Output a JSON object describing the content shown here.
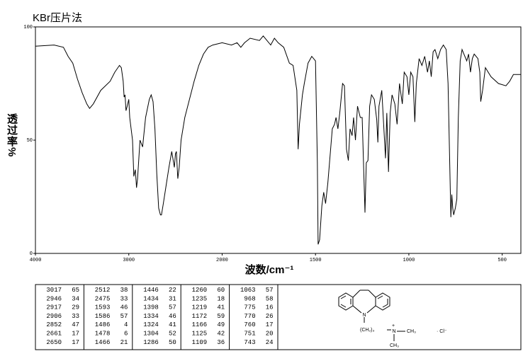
{
  "chart_data": {
    "type": "line",
    "title": "KBr压片法",
    "x_label": "波数/cm⁻¹",
    "y_label": "透过率%",
    "xlim": [
      4000,
      400
    ],
    "scale_change_at": 2000,
    "xticks": [
      4000,
      3000,
      2000,
      1500,
      1000,
      500
    ],
    "ylim": [
      0,
      100
    ],
    "yticks": [
      0,
      50,
      100
    ],
    "color": "#000000",
    "x": [
      4000,
      3800,
      3700,
      3650,
      3600,
      3550,
      3500,
      3450,
      3420,
      3380,
      3300,
      3200,
      3150,
      3100,
      3080,
      3060,
      3050,
      3040,
      3030,
      3017,
      3000,
      2990,
      2960,
      2946,
      2930,
      2917,
      2906,
      2880,
      2852,
      2820,
      2780,
      2760,
      2740,
      2720,
      2700,
      2680,
      2661,
      2650,
      2630,
      2600,
      2570,
      2540,
      2512,
      2500,
      2490,
      2475,
      2460,
      2440,
      2400,
      2350,
      2300,
      2250,
      2200,
      2150,
      2100,
      2050,
      2000,
      1950,
      1920,
      1900,
      1880,
      1850,
      1800,
      1780,
      1760,
      1740,
      1720,
      1700,
      1670,
      1640,
      1620,
      1600,
      1593,
      1586,
      1570,
      1560,
      1540,
      1520,
      1500,
      1490,
      1486,
      1478,
      1466,
      1456,
      1446,
      1434,
      1420,
      1410,
      1398,
      1390,
      1380,
      1370,
      1355,
      1345,
      1334,
      1324,
      1315,
      1304,
      1296,
      1286,
      1275,
      1260,
      1250,
      1235,
      1228,
      1219,
      1210,
      1200,
      1185,
      1172,
      1166,
      1160,
      1145,
      1125,
      1118,
      1109,
      1100,
      1090,
      1075,
      1063,
      1050,
      1035,
      1025,
      1010,
      1000,
      990,
      978,
      968,
      960,
      945,
      930,
      915,
      900,
      890,
      880,
      870,
      860,
      845,
      830,
      815,
      800,
      790,
      775,
      770,
      765,
      760,
      751,
      743,
      735,
      725,
      715,
      705,
      690,
      680,
      670,
      660,
      650,
      630,
      620,
      615,
      605,
      590,
      560,
      520,
      480,
      460,
      440,
      420,
      400
    ],
    "values": [
      91.5,
      92,
      91,
      87,
      84,
      77,
      71,
      66,
      64,
      66,
      72,
      76,
      80,
      83,
      82,
      76,
      69,
      70,
      63,
      65,
      68,
      60,
      50,
      34,
      37,
      29,
      33,
      50,
      47,
      60,
      68,
      70,
      67,
      55,
      35,
      20,
      17,
      17,
      22,
      30,
      38,
      45,
      38,
      44,
      45,
      33,
      38,
      50,
      60,
      68,
      76,
      83,
      88,
      91,
      92,
      92.5,
      93,
      92,
      93,
      91,
      93,
      95,
      94,
      96,
      94,
      92,
      95,
      93,
      91,
      84,
      83,
      72,
      46,
      57,
      70,
      75,
      84,
      87,
      85,
      40,
      4,
      6,
      21,
      27,
      22,
      31,
      45,
      55,
      57,
      60,
      55,
      62,
      75,
      74,
      46,
      41,
      55,
      52,
      60,
      50,
      65,
      60,
      60,
      18,
      40,
      41,
      65,
      70,
      68,
      59,
      49,
      65,
      72,
      42,
      62,
      36,
      62,
      70,
      66,
      57,
      75,
      66,
      80,
      78,
      70,
      80,
      78,
      58,
      75,
      86,
      83,
      87,
      80,
      85,
      78,
      89,
      90,
      86,
      90,
      92,
      90,
      75,
      16,
      26,
      20,
      17,
      20,
      24,
      60,
      85,
      90,
      88,
      85,
      88,
      80,
      86,
      88,
      86,
      80,
      67,
      72,
      82,
      78,
      75,
      74,
      76,
      79,
      79,
      79
    ]
  },
  "peak_table": {
    "columns": [
      [
        [
          3017,
          65
        ],
        [
          2946,
          34
        ],
        [
          2917,
          29
        ],
        [
          2906,
          33
        ],
        [
          2852,
          47
        ],
        [
          2661,
          17
        ],
        [
          2650,
          17
        ]
      ],
      [
        [
          2512,
          38
        ],
        [
          2475,
          33
        ],
        [
          1593,
          46
        ],
        [
          1586,
          57
        ],
        [
          1486,
          4
        ],
        [
          1478,
          6
        ],
        [
          1466,
          21
        ]
      ],
      [
        [
          1446,
          22
        ],
        [
          1434,
          31
        ],
        [
          1398,
          57
        ],
        [
          1334,
          46
        ],
        [
          1324,
          41
        ],
        [
          1304,
          52
        ],
        [
          1286,
          50
        ]
      ],
      [
        [
          1260,
          60
        ],
        [
          1235,
          18
        ],
        [
          1219,
          41
        ],
        [
          1172,
          59
        ],
        [
          1166,
          49
        ],
        [
          1125,
          42
        ],
        [
          1109,
          36
        ]
      ],
      [
        [
          1063,
          57
        ],
        [
          968,
          58
        ],
        [
          775,
          16
        ],
        [
          770,
          26
        ],
        [
          760,
          17
        ],
        [
          751,
          20
        ],
        [
          743,
          24
        ]
      ]
    ]
  },
  "structure": {
    "labels": [
      "N",
      "(CH₂)₃",
      "N",
      "+",
      "CH₃",
      "CH₃",
      "· Cl⁻"
    ]
  }
}
